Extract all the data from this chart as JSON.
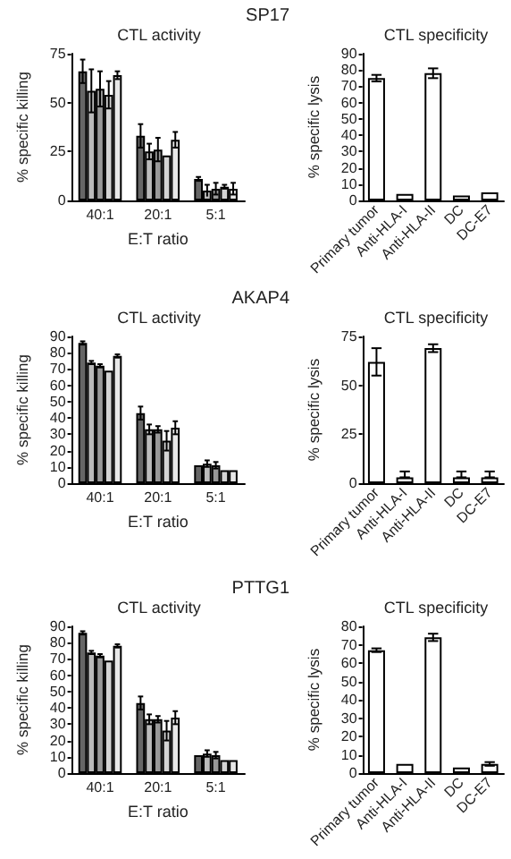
{
  "chart_data": [
    {
      "type": "bar",
      "title": "CTL activity",
      "annotations": [
        "SP17"
      ],
      "xlabel": "E:T ratio",
      "ylabel": "% specific killing",
      "categories": [
        "40:1",
        "20:1",
        "5:1"
      ],
      "ylim": [
        0,
        75
      ],
      "yticks": [
        0,
        25,
        50,
        75
      ],
      "series": [
        {
          "color": "#666666",
          "values": [
            66,
            33,
            11
          ],
          "errors": [
            6,
            6,
            1
          ]
        },
        {
          "color": "#bbbbbb",
          "values": [
            56,
            25,
            5
          ],
          "errors": [
            11,
            4,
            3
          ]
        },
        {
          "color": "#999999",
          "values": [
            57,
            26,
            6
          ],
          "errors": [
            9,
            6,
            3
          ]
        },
        {
          "color": "#d4d4d4",
          "values": [
            54,
            23,
            7
          ],
          "errors": [
            7,
            null,
            1
          ]
        },
        {
          "color": "#e8e8e8",
          "values": [
            64,
            31,
            6
          ],
          "errors": [
            2,
            4,
            3
          ]
        }
      ]
    },
    {
      "type": "bar",
      "title": "CTL specificity",
      "ylabel": "% specific lysis",
      "categories": [
        "Primary tumor",
        "Anti-HLA-I",
        "Anti-HLA-II",
        "DC",
        "DC-E7"
      ],
      "ylim": [
        0,
        90
      ],
      "yticks": [
        0,
        10,
        20,
        30,
        40,
        50,
        60,
        70,
        80,
        90
      ],
      "color": "#ffffff",
      "values": [
        75,
        4,
        78,
        3,
        5
      ],
      "errors": [
        2,
        null,
        3,
        null,
        null
      ]
    },
    {
      "type": "bar",
      "title": "CTL activity",
      "annotations": [
        "AKAP4"
      ],
      "xlabel": "E:T ratio",
      "ylabel": "% specific killing",
      "categories": [
        "40:1",
        "20:1",
        "5:1"
      ],
      "ylim": [
        0,
        90
      ],
      "yticks": [
        0,
        10,
        20,
        30,
        40,
        50,
        60,
        70,
        80,
        90
      ],
      "series": [
        {
          "color": "#666666",
          "values": [
            86,
            43,
            11
          ],
          "errors": [
            1,
            4,
            null
          ]
        },
        {
          "color": "#bbbbbb",
          "values": [
            74,
            33,
            12
          ],
          "errors": [
            1,
            3,
            2
          ]
        },
        {
          "color": "#999999",
          "values": [
            72,
            33,
            11
          ],
          "errors": [
            1,
            2,
            2
          ]
        },
        {
          "color": "#d4d4d4",
          "values": [
            69,
            26,
            8
          ],
          "errors": [
            null,
            6,
            null
          ]
        },
        {
          "color": "#e8e8e8",
          "values": [
            78,
            34,
            8
          ],
          "errors": [
            1,
            4,
            null
          ]
        }
      ]
    },
    {
      "type": "bar",
      "title": "CTL specificity",
      "ylabel": "% specific lysis",
      "categories": [
        "Primary tumor",
        "Anti-HLA-I",
        "Anti-HLA-II",
        "DC",
        "DC-E7"
      ],
      "ylim": [
        0,
        75
      ],
      "yticks": [
        0,
        25,
        50,
        75
      ],
      "color": "#ffffff",
      "values": [
        62,
        3,
        69,
        3,
        3
      ],
      "errors": [
        7,
        [
          3,
          6
        ],
        2,
        [
          3,
          6
        ],
        [
          3,
          6
        ]
      ]
    },
    {
      "type": "bar",
      "title": "CTL activity",
      "annotations": [
        "PTTG1"
      ],
      "xlabel": "E:T ratio",
      "ylabel": "% specific killing",
      "categories": [
        "40:1",
        "20:1",
        "5:1"
      ],
      "ylim": [
        0,
        90
      ],
      "yticks": [
        0,
        10,
        20,
        30,
        40,
        50,
        60,
        70,
        80,
        90
      ],
      "series": [
        {
          "color": "#666666",
          "values": [
            86,
            43,
            11
          ],
          "errors": [
            1,
            4,
            null
          ]
        },
        {
          "color": "#bbbbbb",
          "values": [
            74,
            33,
            12
          ],
          "errors": [
            1,
            3,
            2
          ]
        },
        {
          "color": "#999999",
          "values": [
            72,
            33,
            11
          ],
          "errors": [
            1,
            2,
            2
          ]
        },
        {
          "color": "#d4d4d4",
          "values": [
            69,
            26,
            8
          ],
          "errors": [
            null,
            6,
            null
          ]
        },
        {
          "color": "#e8e8e8",
          "values": [
            78,
            34,
            8
          ],
          "errors": [
            1,
            4,
            null
          ]
        }
      ]
    },
    {
      "type": "bar",
      "title": "CTL specificity",
      "ylabel": "% specific lysis",
      "categories": [
        "Primary tumor",
        "Anti-HLA-I",
        "Anti-HLA-II",
        "DC",
        "DC-E7"
      ],
      "ylim": [
        0,
        80
      ],
      "yticks": [
        0,
        10,
        20,
        30,
        40,
        50,
        60,
        70,
        80
      ],
      "color": "#ffffff",
      "values": [
        67,
        5,
        74,
        3,
        5
      ],
      "errors": [
        1,
        null,
        2,
        null,
        1
      ]
    }
  ]
}
